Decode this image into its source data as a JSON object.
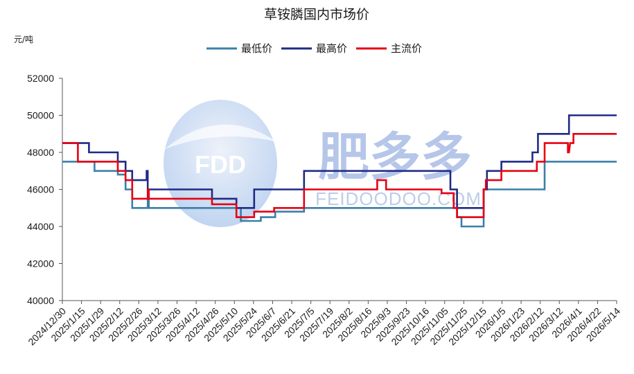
{
  "chart_data": {
    "type": "line",
    "title": "草铵膦国内市场价",
    "ylabel": "元/吨",
    "xlabel": "",
    "ylim": [
      40000,
      52000
    ],
    "yticks": [
      40000,
      42000,
      44000,
      46000,
      48000,
      50000,
      52000
    ],
    "xlim": [
      "2024-12-30",
      "2026-05-14"
    ],
    "x_tick_labels": [
      "2024/12/30",
      "2025/1/15",
      "2025/1/29",
      "2025/2/12",
      "2025/2/26",
      "2025/3/12",
      "2025/3/26",
      "2025/4/12",
      "2025/4/26",
      "2025/5/10",
      "2025/5/24",
      "2025/6/7",
      "2025/6/21",
      "2025/7/5",
      "2025/7/19",
      "2025/8/2",
      "2025/8/16",
      "2025/9/3",
      "2025/9/23",
      "2025/10/16",
      "2025/11/05",
      "2025/11/25",
      "2025/12/15",
      "2026/1/5",
      "2026/1/23",
      "2026/2/12",
      "2026/3/12",
      "2026/4/1",
      "2026/4/22",
      "2026/5/14"
    ],
    "grid": false,
    "legend_position": "top",
    "series": [
      {
        "name": "最低价",
        "color": "#3a7fa8",
        "points": [
          [
            "2024-12-30",
            47500
          ],
          [
            "2025-01-28",
            47500
          ],
          [
            "2025-01-28",
            47000
          ],
          [
            "2025-02-18",
            47000
          ],
          [
            "2025-02-18",
            46800
          ],
          [
            "2025-02-25",
            46800
          ],
          [
            "2025-02-25",
            46000
          ],
          [
            "2025-03-03",
            46000
          ],
          [
            "2025-03-03",
            45000
          ],
          [
            "2025-03-17",
            45000
          ],
          [
            "2025-03-17",
            45500
          ],
          [
            "2025-03-18",
            45500
          ],
          [
            "2025-03-18",
            45000
          ],
          [
            "2025-06-09",
            45000
          ],
          [
            "2025-06-09",
            44300
          ],
          [
            "2025-06-27",
            44300
          ],
          [
            "2025-06-27",
            44500
          ],
          [
            "2025-07-10",
            44500
          ],
          [
            "2025-07-10",
            44800
          ],
          [
            "2025-08-05",
            44800
          ],
          [
            "2025-08-05",
            45000
          ],
          [
            "2025-12-21",
            45000
          ],
          [
            "2025-12-21",
            44500
          ],
          [
            "2025-12-25",
            44500
          ],
          [
            "2025-12-25",
            44000
          ],
          [
            "2026-01-14",
            44000
          ],
          [
            "2026-01-14",
            46000
          ],
          [
            "2026-03-10",
            46000
          ],
          [
            "2026-03-10",
            47500
          ],
          [
            "2026-05-14",
            47500
          ]
        ]
      },
      {
        "name": "最高价",
        "color": "#1f2a85",
        "points": [
          [
            "2024-12-30",
            48500
          ],
          [
            "2025-01-23",
            48500
          ],
          [
            "2025-01-23",
            48000
          ],
          [
            "2025-02-18",
            48000
          ],
          [
            "2025-02-18",
            47500
          ],
          [
            "2025-02-25",
            47500
          ],
          [
            "2025-02-25",
            47000
          ],
          [
            "2025-03-03",
            47000
          ],
          [
            "2025-03-03",
            46500
          ],
          [
            "2025-03-16",
            46500
          ],
          [
            "2025-03-16",
            47000
          ],
          [
            "2025-03-17",
            47000
          ],
          [
            "2025-03-17",
            46000
          ],
          [
            "2025-05-14",
            46000
          ],
          [
            "2025-05-14",
            45500
          ],
          [
            "2025-06-05",
            45500
          ],
          [
            "2025-06-05",
            45000
          ],
          [
            "2025-06-21",
            45000
          ],
          [
            "2025-06-21",
            46000
          ],
          [
            "2025-08-05",
            46000
          ],
          [
            "2025-08-05",
            47000
          ],
          [
            "2025-12-15",
            47000
          ],
          [
            "2025-12-15",
            46000
          ],
          [
            "2025-12-21",
            46000
          ],
          [
            "2025-12-21",
            45000
          ],
          [
            "2026-01-14",
            45000
          ],
          [
            "2026-01-14",
            46000
          ],
          [
            "2026-01-17",
            46000
          ],
          [
            "2026-01-17",
            47000
          ],
          [
            "2026-01-30",
            47000
          ],
          [
            "2026-01-30",
            47500
          ],
          [
            "2026-02-27",
            47500
          ],
          [
            "2026-02-27",
            48000
          ],
          [
            "2026-03-04",
            48000
          ],
          [
            "2026-03-04",
            49000
          ],
          [
            "2026-04-01",
            49000
          ],
          [
            "2026-04-01",
            50000
          ],
          [
            "2026-05-14",
            50000
          ]
        ]
      },
      {
        "name": "主流价",
        "color": "#e60012",
        "points": [
          [
            "2024-12-30",
            48500
          ],
          [
            "2025-01-13",
            48500
          ],
          [
            "2025-01-13",
            47500
          ],
          [
            "2025-02-18",
            47500
          ],
          [
            "2025-02-18",
            47000
          ],
          [
            "2025-02-25",
            47000
          ],
          [
            "2025-02-25",
            46500
          ],
          [
            "2025-03-03",
            46500
          ],
          [
            "2025-03-03",
            45500
          ],
          [
            "2025-03-17",
            45500
          ],
          [
            "2025-03-17",
            46000
          ],
          [
            "2025-03-18",
            46000
          ],
          [
            "2025-03-18",
            45500
          ],
          [
            "2025-05-14",
            45500
          ],
          [
            "2025-05-14",
            45200
          ],
          [
            "2025-06-05",
            45200
          ],
          [
            "2025-06-05",
            44500
          ],
          [
            "2025-06-21",
            44500
          ],
          [
            "2025-06-21",
            44800
          ],
          [
            "2025-07-09",
            44800
          ],
          [
            "2025-07-09",
            45000
          ],
          [
            "2025-08-05",
            45000
          ],
          [
            "2025-08-05",
            46000
          ],
          [
            "2025-10-10",
            46000
          ],
          [
            "2025-10-10",
            46500
          ],
          [
            "2025-10-18",
            46500
          ],
          [
            "2025-10-18",
            46000
          ],
          [
            "2025-12-07",
            46000
          ],
          [
            "2025-12-07",
            45800
          ],
          [
            "2025-12-18",
            45800
          ],
          [
            "2025-12-18",
            45000
          ],
          [
            "2025-12-21",
            45000
          ],
          [
            "2025-12-21",
            44500
          ],
          [
            "2026-01-14",
            44500
          ],
          [
            "2026-01-14",
            46000
          ],
          [
            "2026-01-16",
            46000
          ],
          [
            "2026-01-16",
            46500
          ],
          [
            "2026-01-30",
            46500
          ],
          [
            "2026-01-30",
            47000
          ],
          [
            "2026-03-03",
            47000
          ],
          [
            "2026-03-03",
            47500
          ],
          [
            "2026-03-10",
            47500
          ],
          [
            "2026-03-10",
            48500
          ],
          [
            "2026-03-31",
            48500
          ],
          [
            "2026-03-31",
            48000
          ],
          [
            "2026-04-01",
            48000
          ],
          [
            "2026-04-02",
            48500
          ],
          [
            "2026-04-05",
            48500
          ],
          [
            "2026-04-05",
            49000
          ],
          [
            "2026-05-14",
            49000
          ]
        ]
      }
    ]
  },
  "watermark": {
    "logo_text": "FDD",
    "brand_text": "肥多多",
    "brand_url_text": "FEIDOODOO.COM"
  }
}
